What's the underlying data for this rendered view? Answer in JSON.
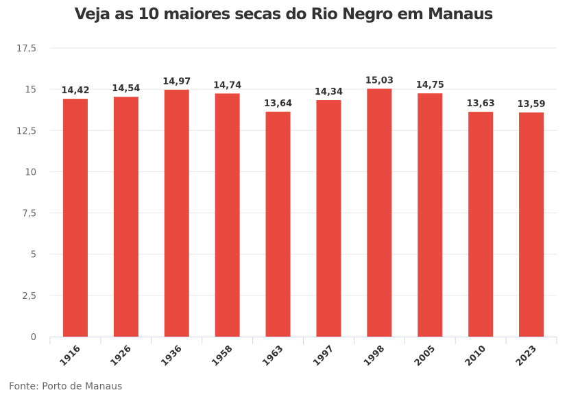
{
  "chart_data": {
    "type": "bar",
    "title": "Veja as 10 maiores secas do Rio Negro em Manaus",
    "xlabel": "",
    "ylabel": "",
    "categories": [
      "1916",
      "1926",
      "1936",
      "1958",
      "1963",
      "1997",
      "1998",
      "2005",
      "2010",
      "2023"
    ],
    "values": [
      14.42,
      14.54,
      14.97,
      14.74,
      13.64,
      14.34,
      15.03,
      14.75,
      13.63,
      13.59
    ],
    "data_labels": [
      "14,42",
      "14,54",
      "14,97",
      "14,74",
      "13,64",
      "14,34",
      "15,03",
      "14,75",
      "13,63",
      "13,59"
    ],
    "ylim": [
      0,
      17.5
    ],
    "yticks": [
      0,
      2.5,
      5,
      7.5,
      10,
      12.5,
      15,
      17.5
    ],
    "ytick_labels": [
      "0",
      "2,5",
      "5",
      "7,5",
      "10",
      "12,5",
      "15",
      "17,5"
    ],
    "grid": true,
    "legend": "none",
    "bar_color": "#e84a3f",
    "source": "Fonte: Porto de Manaus"
  }
}
